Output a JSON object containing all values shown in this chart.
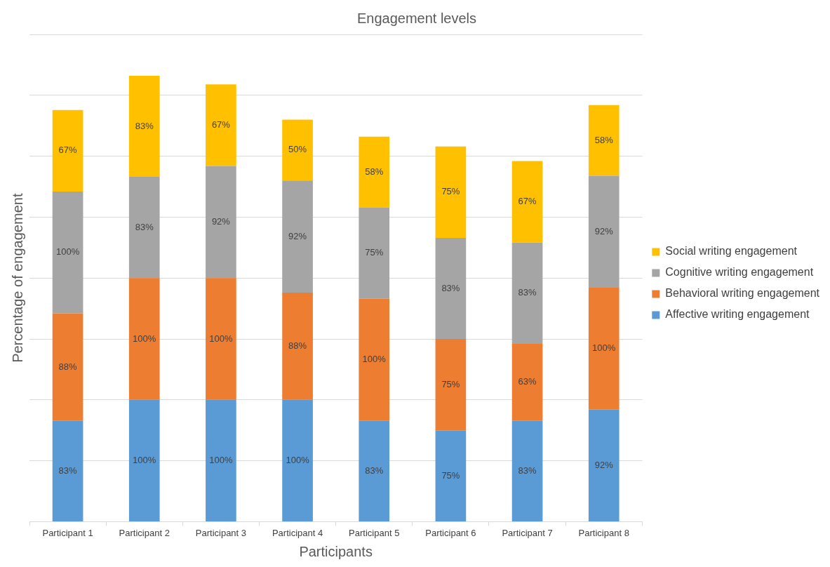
{
  "chart_data": {
    "type": "bar",
    "title": "Engagement levels",
    "xlabel": "Participants",
    "ylabel": "Percentage of engagement",
    "categories": [
      "Participant 1",
      "Participant 2",
      "Participant 3",
      "Participant 4",
      "Participant 5",
      "Participant 6",
      "Participant 7",
      "Participant 8"
    ],
    "stacked": true,
    "ylim": [
      0,
      400
    ],
    "yticks": [
      0,
      50,
      100,
      150,
      200,
      250,
      300,
      350,
      400
    ],
    "tick_labels": "x",
    "grid": "y",
    "legend": "right",
    "series": [
      {
        "name": "Affective writing engagement",
        "color": "#5b9bd5",
        "values": [
          83,
          100,
          100,
          100,
          83,
          75,
          83,
          92
        ],
        "value_labels": [
          "83%",
          "100%",
          "100%",
          "100%",
          "83%",
          "75%",
          "83%",
          "92%"
        ]
      },
      {
        "name": "Behavioral writing engagement",
        "color": "#ed7d31",
        "values": [
          88,
          100,
          100,
          88,
          100,
          75,
          63,
          100
        ],
        "value_labels": [
          "88%",
          "100%",
          "100%",
          "88%",
          "100%",
          "75%",
          "63%",
          "100%"
        ]
      },
      {
        "name": "Cognitive writing engagement",
        "color": "#a5a5a5",
        "values": [
          100,
          83,
          92,
          92,
          75,
          83,
          83,
          92
        ],
        "value_labels": [
          "100%",
          "83%",
          "92%",
          "92%",
          "75%",
          "83%",
          "83%",
          "92%"
        ]
      },
      {
        "name": "Social writing engagement",
        "color": "#ffc000",
        "values": [
          67,
          83,
          67,
          50,
          58,
          75,
          67,
          58
        ],
        "value_labels": [
          "67%",
          "83%",
          "67%",
          "50%",
          "58%",
          "75%",
          "67%",
          "58%"
        ]
      }
    ]
  }
}
